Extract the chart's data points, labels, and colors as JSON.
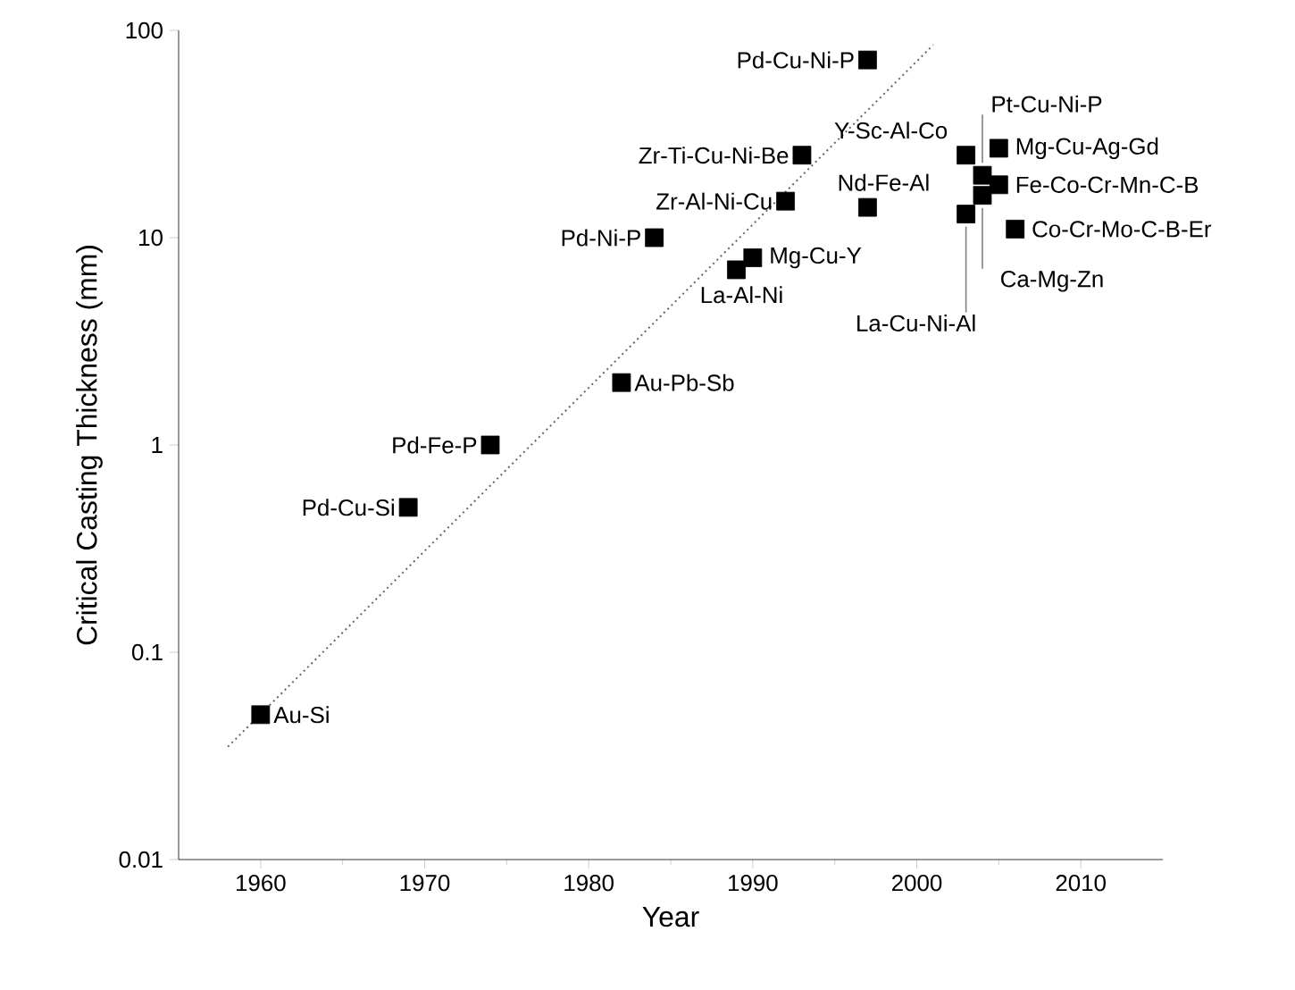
{
  "chart_data": {
    "type": "scatter",
    "xlabel": "Year",
    "ylabel": "Critical Casting Thickness (mm)",
    "log": "y",
    "xlim": [
      1955,
      2015
    ],
    "ylim": [
      0.01,
      100
    ],
    "xticks": [
      1960,
      1970,
      1980,
      1990,
      2000,
      2010
    ],
    "yticks": [
      0.01,
      0.1,
      1,
      10,
      100
    ],
    "series": [
      {
        "color": "#000000",
        "marker": "square",
        "x": [
          1960,
          1969,
          1974,
          1982,
          1984,
          1989,
          1990,
          1992,
          1993,
          1997,
          1997,
          2003,
          2003,
          2004,
          2004,
          2005,
          2005,
          2006
        ],
        "values": [
          0.05,
          0.5,
          1,
          2,
          10,
          7,
          8,
          15,
          25,
          72,
          14,
          25,
          13,
          20,
          16,
          27,
          18,
          11
        ]
      },
      {
        "type": "line",
        "color": "#666666",
        "line_style": "dotted",
        "marker": "none",
        "x": [
          1958,
          2001
        ],
        "values": [
          0.035,
          85
        ]
      }
    ],
    "annotations": [
      {
        "text": "Au-Si",
        "x": 1960,
        "y": 0.05
      },
      {
        "text": "Pd-Cu-Si",
        "x": 1969,
        "y": 0.5
      },
      {
        "text": "Pd-Fe-P",
        "x": 1974,
        "y": 1
      },
      {
        "text": "Au-Pb-Sb",
        "x": 1982,
        "y": 2
      },
      {
        "text": "Pd-Ni-P",
        "x": 1984,
        "y": 10
      },
      {
        "text": "La-Al-Ni",
        "x": 1989,
        "y": 7
      },
      {
        "text": "Mg-Cu-Y",
        "x": 1990,
        "y": 8
      },
      {
        "text": "Zr-Al-Ni-Cu",
        "x": 1992,
        "y": 15
      },
      {
        "text": "Zr-Ti-Cu-Ni-Be",
        "x": 1993,
        "y": 25
      },
      {
        "text": "Pd-Cu-Ni-P",
        "x": 1997,
        "y": 72
      },
      {
        "text": "Nd-Fe-Al",
        "x": 1997,
        "y": 14
      },
      {
        "text": "Y-Sc-Al-Co",
        "x": 2003,
        "y": 25
      },
      {
        "text": "La-Cu-Ni-Al",
        "x": 2003,
        "y": 13
      },
      {
        "text": "Pt-Cu-Ni-P",
        "x": 2004,
        "y": 20
      },
      {
        "text": "Ca-Mg-Zn",
        "x": 2004,
        "y": 16
      },
      {
        "text": "Mg-Cu-Ag-Gd",
        "x": 2005,
        "y": 27
      },
      {
        "text": "Fe-Co-Cr-Mn-C-B",
        "x": 2005,
        "y": 18
      },
      {
        "text": "Co-Cr-Mo-C-B-Er",
        "x": 2006,
        "y": 11
      }
    ]
  }
}
